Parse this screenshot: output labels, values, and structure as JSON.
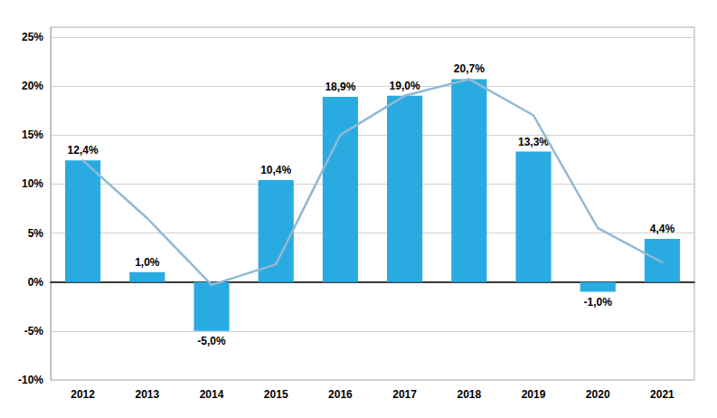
{
  "chart_data": {
    "type": "bar",
    "categories": [
      "2012",
      "2013",
      "2014",
      "2015",
      "2016",
      "2017",
      "2018",
      "2019",
      "2020",
      "2021"
    ],
    "series": [
      {
        "type": "bar",
        "color": "#29ABE2",
        "values": [
          12.4,
          1.0,
          -5.0,
          10.4,
          18.9,
          19.0,
          20.7,
          13.3,
          -1.0,
          4.4
        ],
        "value_labels": [
          "12,4%",
          "1,0%",
          "-5,0%",
          "10,4%",
          "18,9%",
          "19,0%",
          "20,7%",
          "13,3%",
          "-1,0%",
          "4,4%"
        ]
      },
      {
        "type": "line",
        "color": "#91B9D4",
        "values": [
          12.4,
          6.5,
          -0.3,
          1.8,
          15.0,
          19.0,
          20.7,
          17.0,
          5.5,
          2.0
        ]
      }
    ],
    "ylim": [
      -10,
      26
    ],
    "yticks": [
      {
        "value": -10,
        "label": "-10%"
      },
      {
        "value": -5,
        "label": "-5%"
      },
      {
        "value": 0,
        "label": "0%"
      },
      {
        "value": 5,
        "label": "5%"
      },
      {
        "value": 10,
        "label": "10%"
      },
      {
        "value": 15,
        "label": "15%"
      },
      {
        "value": 20,
        "label": "20%"
      },
      {
        "value": 25,
        "label": "25%"
      }
    ],
    "grid": true,
    "data_labels": true
  }
}
